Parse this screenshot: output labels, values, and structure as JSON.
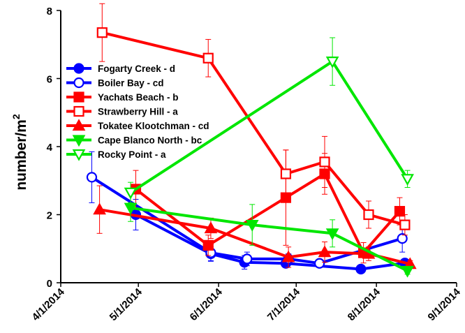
{
  "chart_data": {
    "type": "line",
    "title": "",
    "xlabel": "",
    "ylabel": "number/m",
    "ylabel_sup": "2",
    "xlim": [
      "2014-04-01",
      "2014-09-01"
    ],
    "ylim": [
      0,
      8
    ],
    "x_ticks": [
      "4/1/2014",
      "5/1/2014",
      "6/1/2014",
      "7/1/2014",
      "8/1/2014",
      "9/1/2014"
    ],
    "y_ticks": [
      0,
      2,
      4,
      6,
      8
    ],
    "grid": false,
    "legend_placement": "upper-left",
    "series": [
      {
        "name": "Fogarty Creek - d",
        "color": "#0000ff",
        "marker": "circle",
        "filled": true,
        "points": [
          {
            "x": "2014-04-30",
            "y": 2.0,
            "err": 0.45
          },
          {
            "x": "2014-05-29",
            "y": 0.85,
            "err": 0.2
          },
          {
            "x": "2014-06-11",
            "y": 0.6,
            "err": 0.2
          },
          {
            "x": "2014-06-27",
            "y": 0.57,
            "err": 0.1
          },
          {
            "x": "2014-07-26",
            "y": 0.4,
            "err": 0.05
          },
          {
            "x": "2014-08-12",
            "y": 0.58,
            "err": 0.1
          }
        ]
      },
      {
        "name": "Boiler Bay - cd",
        "color": "#0000ff",
        "marker": "circle",
        "filled": false,
        "points": [
          {
            "x": "2014-04-13",
            "y": 3.1,
            "err": 0.75
          },
          {
            "x": "2014-05-29",
            "y": 0.88,
            "err": 0.25
          },
          {
            "x": "2014-06-12",
            "y": 0.7,
            "err": 0.2
          },
          {
            "x": "2014-06-28",
            "y": 0.7,
            "err": 0.15
          },
          {
            "x": "2014-07-10",
            "y": 0.57,
            "err": 0.1
          },
          {
            "x": "2014-08-11",
            "y": 1.3,
            "err": 0.4
          }
        ]
      },
      {
        "name": "Yachats Beach - b",
        "color": "#ff0000",
        "marker": "square",
        "filled": true,
        "points": [
          {
            "x": "2014-04-30",
            "y": 2.75,
            "err": 0.55
          },
          {
            "x": "2014-05-28",
            "y": 1.1,
            "err": 0.3
          },
          {
            "x": "2014-06-27",
            "y": 2.5,
            "err": 1.4
          },
          {
            "x": "2014-07-12",
            "y": 3.2,
            "err": 0.6
          },
          {
            "x": "2014-07-27",
            "y": 0.88,
            "err": 0.3
          },
          {
            "x": "2014-08-10",
            "y": 2.1,
            "err": 0.4
          }
        ]
      },
      {
        "name": "Strawberry Hill - a",
        "color": "#ff0000",
        "marker": "square",
        "filled": false,
        "points": [
          {
            "x": "2014-04-17",
            "y": 7.35,
            "err": 0.85
          },
          {
            "x": "2014-05-28",
            "y": 6.6,
            "err": 0.55
          },
          {
            "x": "2014-06-27",
            "y": 3.2,
            "err": 0.7
          },
          {
            "x": "2014-07-12",
            "y": 3.55,
            "err": 0.75
          },
          {
            "x": "2014-07-29",
            "y": 2.0,
            "err": 0.4
          },
          {
            "x": "2014-08-12",
            "y": 1.7,
            "err": 0.3
          }
        ]
      },
      {
        "name": "Tokatee Klootchman - cd",
        "color": "#ff0000",
        "marker": "triangle-up",
        "filled": true,
        "points": [
          {
            "x": "2014-04-16",
            "y": 2.15,
            "err": 0.7
          },
          {
            "x": "2014-05-29",
            "y": 1.6,
            "err": 0.3
          },
          {
            "x": "2014-06-28",
            "y": 0.75,
            "err": 0.3
          },
          {
            "x": "2014-07-12",
            "y": 0.9,
            "err": 0.3
          },
          {
            "x": "2014-07-29",
            "y": 0.85,
            "err": 0.2
          },
          {
            "x": "2014-08-14",
            "y": 0.55,
            "err": 0.1
          }
        ]
      },
      {
        "name": "Cape Blanco North - bc",
        "color": "#00e600",
        "marker": "triangle-down",
        "filled": true,
        "points": [
          {
            "x": "2014-04-28",
            "y": 2.2,
            "err": 0.4
          },
          {
            "x": "2014-06-14",
            "y": 1.7,
            "err": 0.6
          },
          {
            "x": "2014-07-15",
            "y": 1.45,
            "err": 0.4
          },
          {
            "x": "2014-08-13",
            "y": 0.35,
            "err": 0.1
          }
        ]
      },
      {
        "name": "Rocky Point - a",
        "color": "#00e600",
        "marker": "triangle-down",
        "filled": false,
        "points": [
          {
            "x": "2014-04-28",
            "y": 2.65,
            "err": 0.3
          },
          {
            "x": "2014-07-15",
            "y": 6.5,
            "err": 0.7
          },
          {
            "x": "2014-08-13",
            "y": 3.05,
            "err": 0.25
          }
        ]
      }
    ]
  }
}
